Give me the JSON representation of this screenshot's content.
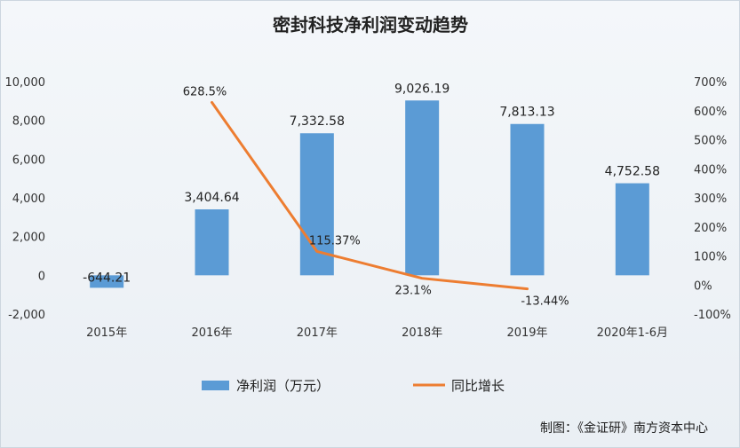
{
  "chart_data": {
    "type": "bar",
    "title": "密封科技净利润变动趋势",
    "categories": [
      "2015年",
      "2016年",
      "2017年",
      "2018年",
      "2019年",
      "2020年1-6月"
    ],
    "series": [
      {
        "name": "净利润（万元）",
        "type": "bar",
        "axis": "left",
        "values": [
          -644.21,
          3404.64,
          7332.58,
          9026.19,
          7813.13,
          4752.58
        ],
        "labels": [
          "-644.21",
          "3,404.64",
          "7,332.58",
          "9,026.19",
          "7,813.13",
          "4,752.58"
        ]
      },
      {
        "name": "同比增长",
        "type": "line",
        "axis": "right",
        "values": [
          null,
          628.5,
          115.37,
          23.1,
          -13.44,
          null
        ],
        "labels": [
          "",
          "628.5%",
          "115.37%",
          "23.1%",
          "-13.44%",
          ""
        ]
      }
    ],
    "y_left": {
      "ylim": [
        -2000,
        10000
      ],
      "ticks": [
        -2000,
        0,
        2000,
        4000,
        6000,
        8000,
        10000
      ],
      "tick_labels": [
        "-2,000",
        "0",
        "2,000",
        "4,000",
        "6,000",
        "8,000",
        "10,000"
      ]
    },
    "y_right": {
      "ylim": [
        -100,
        700
      ],
      "ticks": [
        -100,
        0,
        100,
        200,
        300,
        400,
        500,
        600,
        700
      ],
      "tick_labels": [
        "-100%",
        "0%",
        "100%",
        "200%",
        "300%",
        "400%",
        "500%",
        "600%",
        "700%"
      ]
    },
    "grid": false,
    "legend_position": "bottom",
    "colors": {
      "bar": "#5b9bd5",
      "line": "#ed7d31"
    }
  },
  "source_text": "制图：《金证研》南方资本中心"
}
